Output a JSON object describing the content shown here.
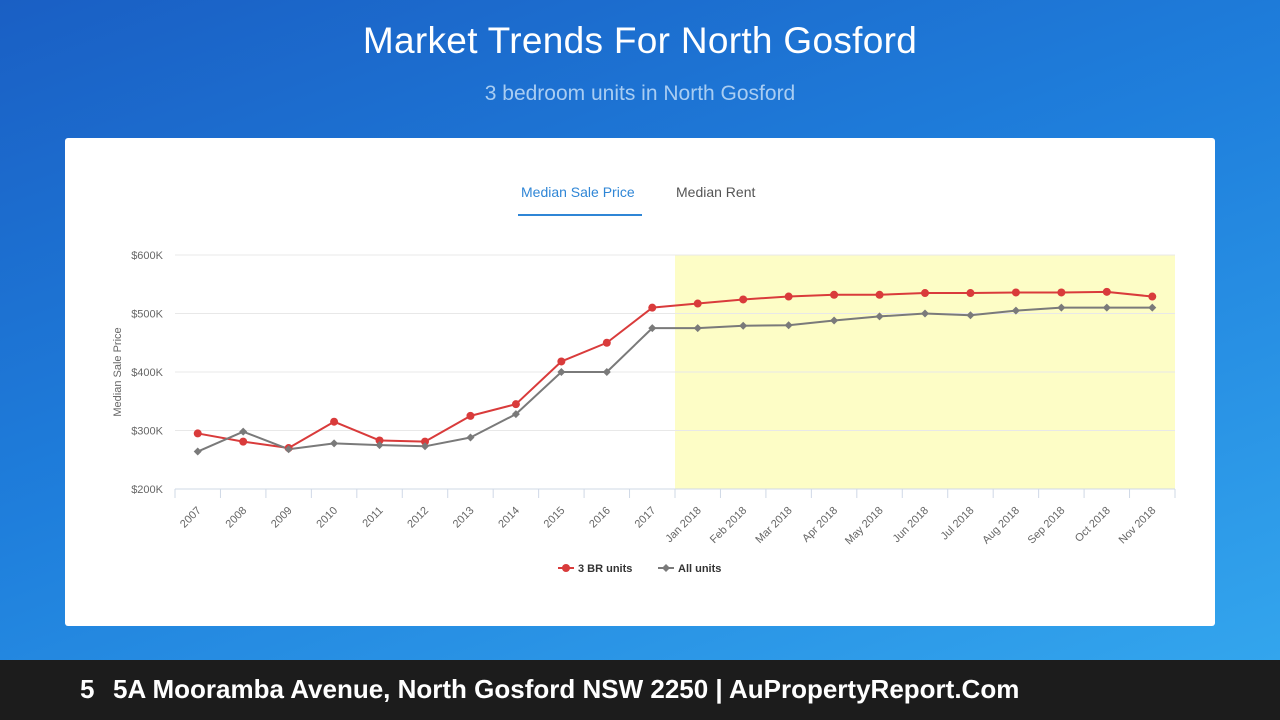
{
  "header": {
    "title": "Market Trends For North Gosford",
    "subtitle": "3 bedroom units in North Gosford"
  },
  "tabs": [
    {
      "label": "Median Sale Price",
      "active": true
    },
    {
      "label": "Median Rent",
      "active": false
    }
  ],
  "footer": {
    "number": "5",
    "text": "5A Mooramba Avenue, North Gosford NSW 2250 | AuPropertyReport.Com"
  },
  "colors": {
    "series_3br": "#d93b3b",
    "series_all": "#7a7a7a",
    "highlight": "#fdfdc6",
    "accent": "#2f86d6"
  },
  "chart_data": {
    "type": "line",
    "ylabel": "Median Sale Price",
    "xlabel": "",
    "ylim": [
      200000,
      600000
    ],
    "yticks": [
      {
        "value": 200000,
        "label": "$200K"
      },
      {
        "value": 300000,
        "label": "$300K"
      },
      {
        "value": 400000,
        "label": "$400K"
      },
      {
        "value": 500000,
        "label": "$500K"
      },
      {
        "value": 600000,
        "label": "$600K"
      }
    ],
    "categories": [
      "2007",
      "2008",
      "2009",
      "2010",
      "2011",
      "2012",
      "2013",
      "2014",
      "2015",
      "2016",
      "2017",
      "Jan 2018",
      "Feb 2018",
      "Mar 2018",
      "Apr 2018",
      "May 2018",
      "Jun 2018",
      "Jul 2018",
      "Aug 2018",
      "Sep 2018",
      "Oct 2018",
      "Nov 2018"
    ],
    "highlight_from": "Jan 2018",
    "series": [
      {
        "name": "3 BR units",
        "marker": "circle",
        "values": [
          295000,
          281000,
          270000,
          315000,
          283000,
          281000,
          325000,
          345000,
          418000,
          450000,
          510000,
          517000,
          524000,
          529000,
          532000,
          532000,
          535000,
          535000,
          536000,
          536000,
          537000,
          529000
        ]
      },
      {
        "name": "All units",
        "marker": "diamond",
        "values": [
          264000,
          298000,
          268000,
          278000,
          275000,
          273000,
          288000,
          328000,
          400000,
          400000,
          475000,
          475000,
          479000,
          480000,
          488000,
          495000,
          500000,
          497000,
          505000,
          510000,
          510000,
          510000
        ]
      }
    ],
    "legend": "bottom-center",
    "grid": true
  }
}
